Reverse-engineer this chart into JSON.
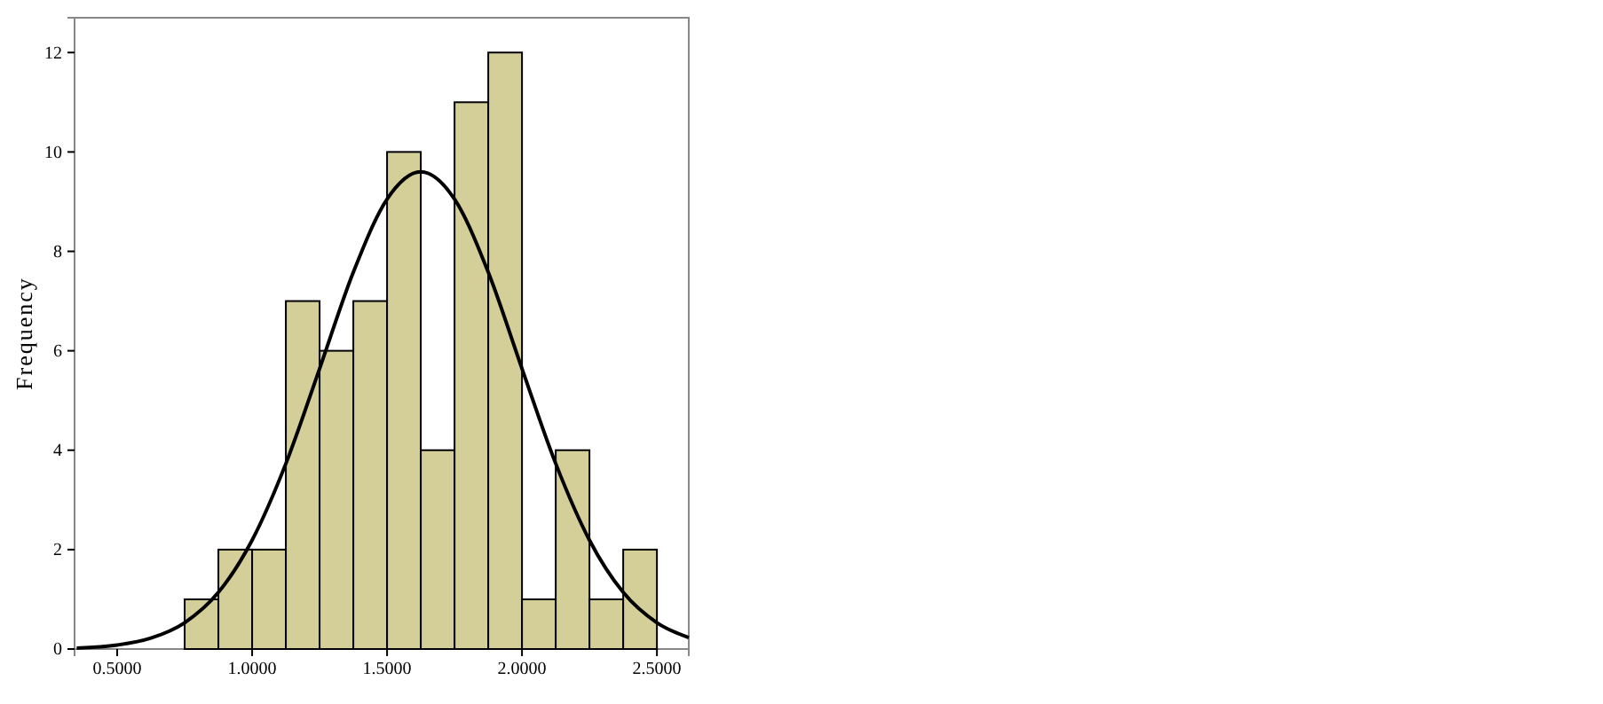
{
  "chart_data": {
    "type": "histogram",
    "ylabel": "Frequency",
    "xlim": [
      0.342,
      2.618
    ],
    "ylim": [
      0,
      12.7
    ],
    "xticks": [
      {
        "value": 0.5,
        "label": "0.5000"
      },
      {
        "value": 1,
        "label": "1.0000"
      },
      {
        "value": 1.5,
        "label": "1.5000"
      },
      {
        "value": 2,
        "label": "2.0000"
      },
      {
        "value": 2.5,
        "label": "2.5000"
      }
    ],
    "yticks": [
      0,
      2,
      4,
      6,
      8,
      10,
      12
    ],
    "series": [
      {
        "type": "histogram",
        "color": "#d4cf98",
        "bins": [
          0.75,
          0.875,
          1,
          1.125,
          1.25,
          1.375,
          1.5,
          1.625,
          1.75,
          1.875,
          2,
          2.125,
          2.25,
          2.375,
          2.5
        ],
        "values": [
          1,
          2,
          2,
          7,
          6,
          7,
          10,
          4,
          11,
          12,
          1,
          4,
          1,
          2
        ]
      },
      {
        "type": "line",
        "color": "#000000",
        "x": [
          0.35,
          0.5,
          0.625,
          0.75,
          0.875,
          1,
          1.125,
          1.25,
          1.375,
          1.5,
          1.625,
          1.75,
          1.875,
          2,
          2.125,
          2.25,
          2.375,
          2.5,
          2.618
        ],
        "values": [
          0.02,
          0.08,
          0.22,
          0.53,
          1.14,
          2.19,
          3.73,
          5.64,
          7.58,
          9.05,
          9.6,
          9.05,
          7.58,
          5.64,
          3.73,
          2.19,
          1.14,
          0.53,
          0.23
        ]
      }
    ]
  }
}
